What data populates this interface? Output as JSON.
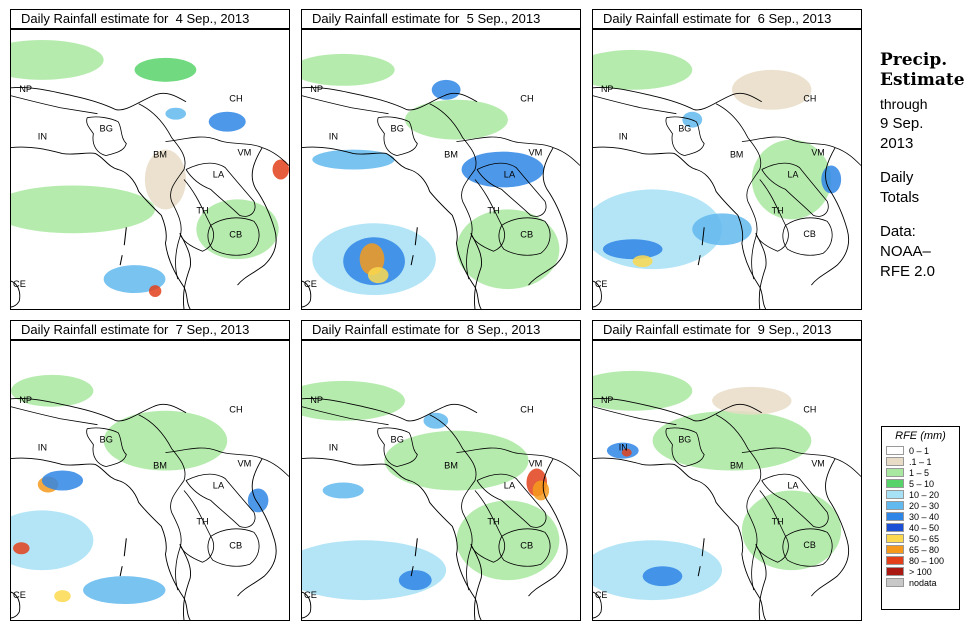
{
  "panels": [
    {
      "title": "Daily Rainfall estimate for  4 Sep., 2013"
    },
    {
      "title": "Daily Rainfall estimate for  5 Sep., 2013"
    },
    {
      "title": "Daily Rainfall estimate for  6 Sep., 2013"
    },
    {
      "title": "Daily Rainfall estimate for  7 Sep., 2013"
    },
    {
      "title": "Daily Rainfall estimate for  8 Sep., 2013"
    },
    {
      "title": "Daily Rainfall estimate for  9 Sep., 2013"
    }
  ],
  "map_labels": {
    "NP": "NP",
    "CH": "CH",
    "IN": "IN",
    "BG": "BG",
    "BM": "BM",
    "VM": "VM",
    "LA": "LA",
    "TH": "TH",
    "CB": "CB",
    "CE": "CE"
  },
  "sidebar": {
    "heading_line1": "Precip.",
    "heading_line2": "Estimate",
    "through": "through",
    "date_line1": "9 Sep.",
    "date_line2": "2013",
    "totals_line1": "Daily",
    "totals_line2": "Totals",
    "data_line1": "Data:",
    "data_line2": "NOAA–",
    "data_line3": "RFE 2.0"
  },
  "legend": {
    "title": "RFE (mm)",
    "items": [
      {
        "label": "0 – 1",
        "color": "#ffffff"
      },
      {
        "label": ".1 – 1",
        "color": "#e8dcc6"
      },
      {
        "label": "1 – 5",
        "color": "#a9e8a0"
      },
      {
        "label": "5 – 10",
        "color": "#58d36a"
      },
      {
        "label": "10 – 20",
        "color": "#a6e1f6"
      },
      {
        "label": "20 – 30",
        "color": "#62b9ef"
      },
      {
        "label": "30 – 40",
        "color": "#2f86e6"
      },
      {
        "label": "40 – 50",
        "color": "#1a4fd6"
      },
      {
        "label": "50 – 65",
        "color": "#fcd94f"
      },
      {
        "label": "65 – 80",
        "color": "#f59a1c"
      },
      {
        "label": "80 – 100",
        "color": "#e2411b"
      },
      {
        "label": "> 100",
        "color": "#aa1a12"
      },
      {
        "label": "nodata",
        "color": "#c8c8c8"
      }
    ]
  }
}
